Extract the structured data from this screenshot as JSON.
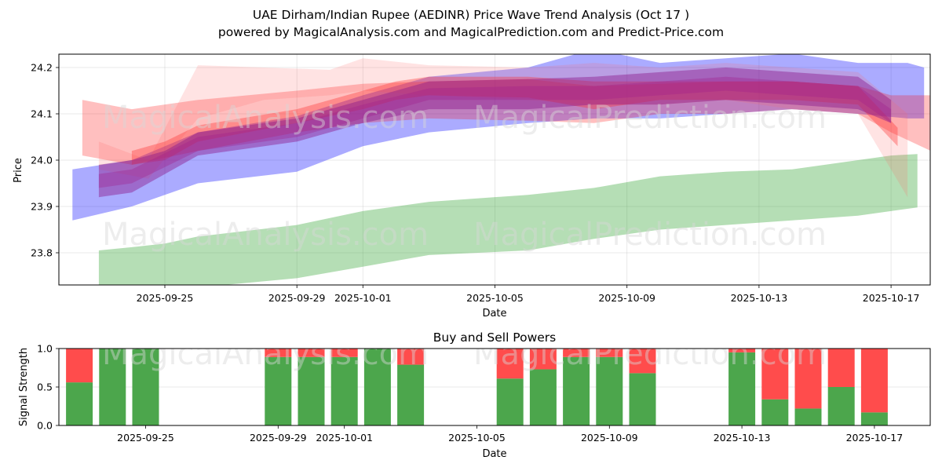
{
  "chart_data": [
    {
      "type": "area",
      "title": "UAE Dirham/Indian Rupee (AEDINR) Price Wave Trend Analysis (Oct 17 )",
      "subtitle": "powered by MagicalAnalysis.com and MagicalPrediction.com and Predict-Price.com",
      "xlabel": "Date",
      "ylabel": "Price",
      "ylim": [
        23.73,
        24.23
      ],
      "xlim": [
        "2025-09-21.2",
        "2025-10-18.2"
      ],
      "yticks": [
        "23.8",
        "23.9",
        "24.0",
        "24.1",
        "24.2"
      ],
      "xticks": [
        "2025-09-25",
        "2025-09-29",
        "2025-10-01",
        "2025-10-05",
        "2025-10-09",
        "2025-10-13",
        "2025-10-17"
      ],
      "grid": true,
      "watermarks": [
        "MagicalAnalysis.com",
        "MagicalPrediction.com"
      ],
      "bands": [
        {
          "name": "green-band",
          "color": "#2ca02c",
          "opacity": 0.35,
          "x": [
            -2.0,
            -1.0,
            0.0,
            1.0,
            4.0,
            6.0,
            8.0,
            11.0,
            13.0,
            15.0,
            17.0,
            19.0,
            21.0,
            22.0,
            22.8
          ],
          "upper": [
            23.805,
            23.812,
            23.82,
            23.835,
            23.86,
            23.89,
            23.91,
            23.925,
            23.94,
            23.965,
            23.975,
            23.98,
            24.0,
            24.01,
            24.013
          ],
          "lower": [
            23.7,
            23.71,
            23.72,
            23.725,
            23.745,
            23.77,
            23.795,
            23.805,
            23.83,
            23.85,
            23.86,
            23.87,
            23.88,
            23.89,
            23.898
          ]
        },
        {
          "name": "blue-band",
          "color": "#0000ff",
          "opacity": 0.33,
          "x": [
            -2.8,
            -1.0,
            1.0,
            4.0,
            6.0,
            8.0,
            11.0,
            13.0,
            15.0,
            17.0,
            19.0,
            21.0,
            22.5,
            23.0
          ],
          "upper": [
            23.98,
            24.0,
            24.06,
            24.095,
            24.14,
            24.18,
            24.2,
            24.24,
            24.21,
            24.22,
            24.23,
            24.21,
            24.21,
            24.2
          ],
          "lower": [
            23.87,
            23.9,
            23.95,
            23.975,
            24.03,
            24.06,
            24.08,
            24.09,
            24.09,
            24.1,
            24.11,
            24.1,
            24.09,
            24.09
          ]
        },
        {
          "name": "red-band-outer",
          "color": "#ff0000",
          "opacity": 0.25,
          "x": [
            -2.5,
            -1.0,
            1.0,
            4.0,
            6.0,
            8.0,
            11.0,
            13.0,
            15.0,
            17.0,
            19.0,
            21.0,
            22.0,
            23.2
          ],
          "upper": [
            24.13,
            24.11,
            24.13,
            24.15,
            24.165,
            24.17,
            24.175,
            24.16,
            24.165,
            24.17,
            24.17,
            24.16,
            24.14,
            24.14
          ],
          "lower": [
            24.01,
            23.99,
            24.02,
            24.06,
            24.08,
            24.09,
            24.085,
            24.08,
            24.1,
            24.1,
            24.11,
            24.1,
            24.06,
            24.02
          ]
        },
        {
          "name": "red-band-light",
          "color": "#ff6666",
          "opacity": 0.18,
          "x": [
            -2.0,
            -0.5,
            1.0,
            3.0,
            5.0,
            6.0,
            8.0,
            11.0,
            13.0,
            15.0,
            17.0,
            19.0,
            21.0,
            22.5
          ],
          "upper": [
            24.04,
            24.0,
            24.205,
            24.2,
            24.195,
            24.22,
            24.205,
            24.2,
            24.21,
            24.2,
            24.21,
            24.2,
            24.19,
            24.1
          ],
          "lower": [
            23.98,
            23.96,
            24.09,
            24.13,
            24.14,
            24.15,
            24.14,
            24.13,
            24.12,
            24.12,
            24.13,
            24.11,
            24.1,
            23.92
          ]
        },
        {
          "name": "red-band-core",
          "color": "#ff2a2a",
          "opacity": 0.35,
          "x": [
            -1.0,
            0.0,
            1.0,
            4.0,
            6.0,
            7.0,
            8.0,
            11.0,
            13.0,
            15.0,
            17.0,
            19.0,
            21.0,
            22.2
          ],
          "upper": [
            24.02,
            24.04,
            24.075,
            24.11,
            24.15,
            24.17,
            24.18,
            24.18,
            24.17,
            24.17,
            24.17,
            24.17,
            24.16,
            24.07
          ],
          "lower": [
            23.99,
            24.0,
            24.04,
            24.08,
            24.11,
            24.13,
            24.14,
            24.135,
            24.11,
            24.13,
            24.13,
            24.13,
            24.12,
            24.03
          ]
        },
        {
          "name": "purple-band-core",
          "color": "#8b1a8b",
          "opacity": 0.45,
          "x": [
            -2.0,
            -1.0,
            0.0,
            1.0,
            4.0,
            6.0,
            8.0,
            11.0,
            13.0,
            15.0,
            17.0,
            19.0,
            21.0,
            22.0
          ],
          "upper": [
            23.99,
            24.0,
            24.02,
            24.06,
            24.09,
            24.13,
            24.17,
            24.175,
            24.18,
            24.19,
            24.2,
            24.19,
            24.18,
            24.13
          ],
          "lower": [
            23.92,
            23.93,
            23.97,
            24.01,
            24.04,
            24.08,
            24.11,
            24.11,
            24.12,
            24.12,
            24.13,
            24.12,
            24.11,
            24.08
          ]
        },
        {
          "name": "purple-band-mid",
          "color": "#a0208c",
          "opacity": 0.35,
          "x": [
            -2.0,
            -1.0,
            1.0,
            4.0,
            6.0,
            8.0,
            11.0,
            13.0,
            15.0,
            17.0,
            19.0,
            21.0,
            22.0
          ],
          "upper": [
            23.97,
            23.98,
            24.05,
            24.08,
            24.12,
            24.155,
            24.16,
            24.16,
            24.17,
            24.18,
            24.17,
            24.16,
            24.11
          ],
          "lower": [
            23.94,
            23.95,
            24.02,
            24.05,
            24.09,
            24.13,
            24.13,
            24.13,
            24.14,
            24.15,
            24.14,
            24.13,
            24.08
          ]
        }
      ]
    },
    {
      "type": "bar",
      "title": "Buy and Sell Powers",
      "xlabel": "Date",
      "ylabel": "Signal Strength",
      "ylim": [
        0,
        1.0
      ],
      "yticks": [
        "0.0",
        "0.5",
        "1.0"
      ],
      "xticks": [
        "2025-09-25",
        "2025-09-29",
        "2025-10-01",
        "2025-10-05",
        "2025-10-09",
        "2025-10-13",
        "2025-10-17"
      ],
      "categories": [
        "2025-09-23",
        "2025-09-24",
        "2025-09-25",
        "2025-09-29",
        "2025-09-30",
        "2025-10-01",
        "2025-10-02",
        "2025-10-03",
        "2025-10-06",
        "2025-10-07",
        "2025-10-08",
        "2025-10-09",
        "2025-10-10",
        "2025-10-13",
        "2025-10-14",
        "2025-10-15",
        "2025-10-16",
        "2025-10-17"
      ],
      "series": [
        {
          "name": "Buy",
          "color": "#4ca64c",
          "values": [
            0.56,
            1.0,
            1.0,
            0.89,
            0.89,
            0.89,
            1.0,
            0.79,
            0.61,
            0.73,
            0.89,
            0.89,
            0.68,
            0.95,
            0.34,
            0.22,
            0.5,
            0.17
          ]
        },
        {
          "name": "Sell",
          "color": "#ff4c4c",
          "values": [
            0.44,
            0.0,
            0.0,
            0.11,
            0.11,
            0.11,
            0.0,
            0.21,
            0.39,
            0.27,
            0.11,
            0.11,
            0.32,
            0.05,
            0.66,
            0.78,
            0.5,
            0.83
          ]
        }
      ]
    }
  ]
}
